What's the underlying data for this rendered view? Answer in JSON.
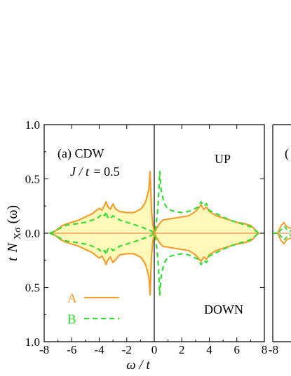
{
  "chart_data": {
    "type": "line",
    "panel_label": "(a) CDW",
    "parameter": {
      "symbol": "J / t",
      "value": "= 0.5"
    },
    "xlabel": "ω / t",
    "ylabel": {
      "prefix": "t",
      "symbol": "N",
      "subscript": "Xσ",
      "suffix": "(ω)"
    },
    "xlim": [
      -8,
      8
    ],
    "ylim_up": [
      0,
      1.0
    ],
    "ylim_down": [
      0,
      1.0
    ],
    "x_ticks": [
      "-8",
      "-6",
      "-4",
      "-2",
      "0",
      "2",
      "4",
      "6",
      "8"
    ],
    "y_tick_labels": [
      "1.0",
      "0.5",
      "0.0",
      "0.5",
      "1.0"
    ],
    "region_labels": {
      "up": "UP",
      "down": "DOWN"
    },
    "neighbor_panel": {
      "x_tick": "-8",
      "label_fragment": "("
    },
    "colors": {
      "A": "#f0a030",
      "B": "#33dd33",
      "fill": "#fff8b8",
      "baseline": "#e08030"
    },
    "legend": {
      "position": "bottom-left",
      "entries": [
        {
          "name": "A",
          "style": "solid"
        },
        {
          "name": "B",
          "style": "dashed"
        }
      ]
    },
    "series": [
      {
        "name": "A",
        "region": "UP",
        "x": [
          -7.6,
          -7.2,
          -6.8,
          -6.5,
          -6.0,
          -5.5,
          -5.0,
          -4.5,
          -4.2,
          -4.0,
          -3.8,
          -3.6,
          -3.5,
          -3.4,
          -3.2,
          -3.0,
          -2.8,
          -2.5,
          -2.0,
          -1.5,
          -1.0,
          -0.8,
          -0.6,
          -0.4,
          -0.3,
          -0.2,
          -0.1,
          0.0,
          0.2,
          0.4,
          0.6,
          1.0,
          1.5,
          2.0,
          2.5,
          3.0,
          3.2,
          3.4,
          3.6,
          3.8,
          4.0,
          4.5,
          5.0,
          5.5,
          6.0,
          6.5,
          7.0,
          7.2,
          7.4,
          7.6
        ],
        "y": [
          0.0,
          0.02,
          0.06,
          0.08,
          0.1,
          0.12,
          0.15,
          0.18,
          0.21,
          0.23,
          0.21,
          0.26,
          0.29,
          0.25,
          0.22,
          0.27,
          0.22,
          0.2,
          0.19,
          0.19,
          0.22,
          0.25,
          0.3,
          0.4,
          0.57,
          0.2,
          0.08,
          0.0,
          0.05,
          0.09,
          0.12,
          0.13,
          0.14,
          0.15,
          0.16,
          0.2,
          0.23,
          0.26,
          0.22,
          0.24,
          0.2,
          0.16,
          0.14,
          0.12,
          0.1,
          0.09,
          0.07,
          0.05,
          0.02,
          0.0
        ]
      },
      {
        "name": "B",
        "region": "UP",
        "x": [
          -7.6,
          -7.2,
          -6.8,
          -6.5,
          -6.0,
          -5.5,
          -5.0,
          -4.5,
          -4.0,
          -3.8,
          -3.6,
          -3.5,
          -3.4,
          -3.2,
          -3.0,
          -2.5,
          -2.0,
          -1.5,
          -1.0,
          -0.6,
          -0.4,
          -0.2,
          0.0,
          0.1,
          0.2,
          0.3,
          0.4,
          0.5,
          0.7,
          1.0,
          1.5,
          2.0,
          2.5,
          3.0,
          3.2,
          3.4,
          3.6,
          3.8,
          4.0,
          4.5,
          5.0,
          5.5,
          6.0,
          6.5,
          7.0,
          7.2,
          7.4,
          7.6
        ],
        "y": [
          0.0,
          0.02,
          0.05,
          0.07,
          0.08,
          0.09,
          0.1,
          0.12,
          0.15,
          0.18,
          0.16,
          0.2,
          0.15,
          0.13,
          0.16,
          0.12,
          0.1,
          0.08,
          0.06,
          0.04,
          0.03,
          0.02,
          0.0,
          0.05,
          0.15,
          0.3,
          0.57,
          0.4,
          0.28,
          0.22,
          0.2,
          0.19,
          0.2,
          0.23,
          0.24,
          0.29,
          0.25,
          0.27,
          0.21,
          0.18,
          0.15,
          0.12,
          0.1,
          0.08,
          0.06,
          0.04,
          0.02,
          0.0
        ]
      },
      {
        "name": "A",
        "region": "DOWN",
        "x": [
          -7.6,
          -7.2,
          -6.8,
          -6.5,
          -6.0,
          -5.5,
          -5.0,
          -4.5,
          -4.0,
          -3.8,
          -3.6,
          -3.5,
          -3.4,
          -3.2,
          -3.0,
          -2.5,
          -2.0,
          -1.5,
          -1.0,
          -0.8,
          -0.6,
          -0.4,
          -0.3,
          -0.2,
          -0.1,
          0.0,
          0.2,
          0.4,
          0.6,
          1.0,
          1.5,
          2.0,
          2.5,
          3.0,
          3.2,
          3.4,
          3.6,
          3.8,
          4.0,
          4.5,
          5.0,
          5.5,
          6.0,
          6.5,
          7.0,
          7.2,
          7.4,
          7.6
        ],
        "y": [
          0.0,
          0.02,
          0.06,
          0.08,
          0.1,
          0.12,
          0.15,
          0.18,
          0.23,
          0.21,
          0.26,
          0.29,
          0.25,
          0.22,
          0.27,
          0.2,
          0.19,
          0.19,
          0.22,
          0.25,
          0.3,
          0.4,
          0.57,
          0.2,
          0.08,
          0.0,
          0.05,
          0.09,
          0.12,
          0.13,
          0.14,
          0.15,
          0.16,
          0.2,
          0.23,
          0.26,
          0.22,
          0.24,
          0.2,
          0.16,
          0.14,
          0.12,
          0.1,
          0.09,
          0.07,
          0.05,
          0.02,
          0.0
        ]
      },
      {
        "name": "B",
        "region": "DOWN",
        "x": [
          -7.6,
          -7.2,
          -6.8,
          -6.5,
          -6.0,
          -5.5,
          -5.0,
          -4.5,
          -4.0,
          -3.8,
          -3.6,
          -3.5,
          -3.4,
          -3.2,
          -3.0,
          -2.5,
          -2.0,
          -1.5,
          -1.0,
          -0.6,
          -0.4,
          -0.2,
          0.0,
          0.1,
          0.2,
          0.3,
          0.4,
          0.5,
          0.7,
          1.0,
          1.5,
          2.0,
          2.5,
          3.0,
          3.2,
          3.4,
          3.6,
          3.8,
          4.0,
          4.5,
          5.0,
          5.5,
          6.0,
          6.5,
          7.0,
          7.2,
          7.4,
          7.6
        ],
        "y": [
          0.0,
          0.02,
          0.05,
          0.07,
          0.08,
          0.09,
          0.1,
          0.12,
          0.15,
          0.18,
          0.16,
          0.2,
          0.15,
          0.13,
          0.16,
          0.12,
          0.1,
          0.08,
          0.06,
          0.04,
          0.03,
          0.02,
          0.0,
          0.05,
          0.15,
          0.3,
          0.57,
          0.4,
          0.28,
          0.22,
          0.2,
          0.19,
          0.2,
          0.23,
          0.24,
          0.29,
          0.25,
          0.27,
          0.21,
          0.18,
          0.15,
          0.12,
          0.1,
          0.08,
          0.06,
          0.04,
          0.02,
          0.0
        ]
      }
    ]
  }
}
